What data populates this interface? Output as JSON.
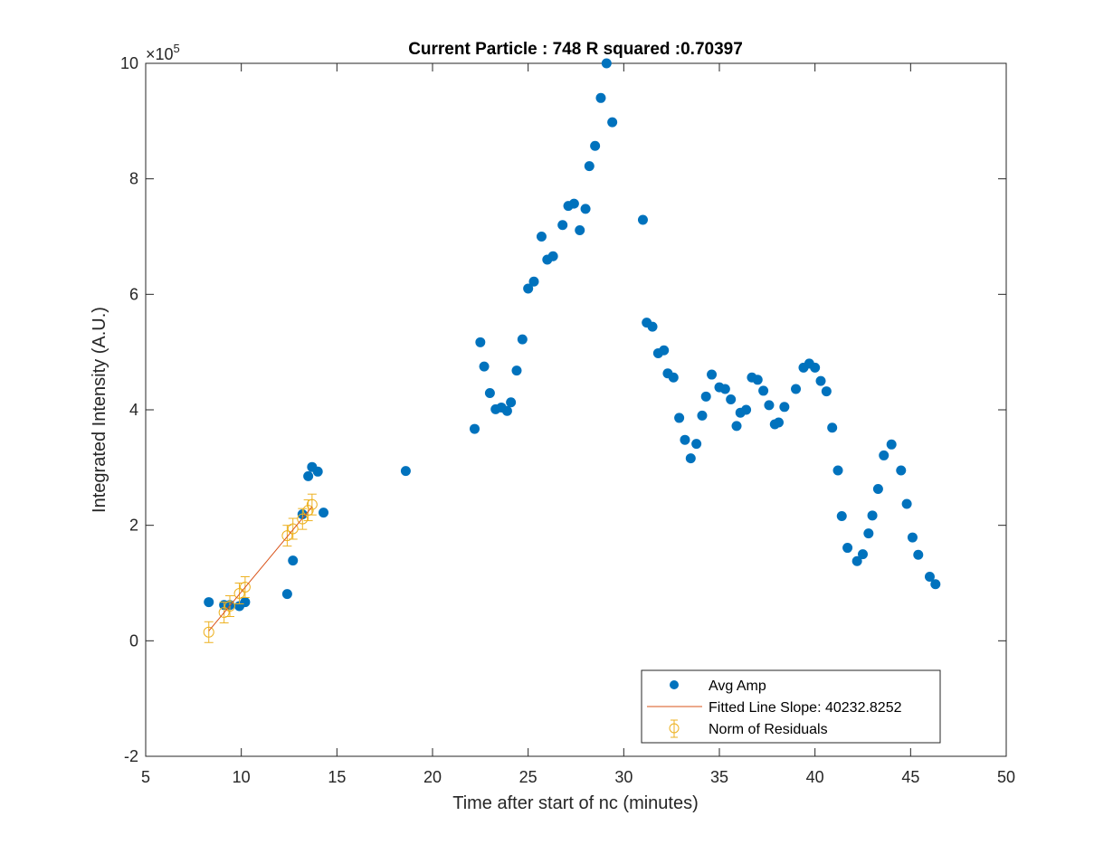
{
  "chart_data": {
    "type": "scatter",
    "title": "Current Particle : 748   R squared :0.70397",
    "xlabel": "Time after start of nc (minutes)",
    "ylabel": "Integrated Intensity (A.U.)",
    "xlim": [
      5,
      50
    ],
    "ylim": [
      -2,
      10
    ],
    "y_exponent_label": "×10",
    "y_exponent_power": "5",
    "y_scale_factor": 100000,
    "xticks": [
      5,
      10,
      15,
      20,
      25,
      30,
      35,
      40,
      45,
      50
    ],
    "yticks": [
      -2,
      0,
      2,
      4,
      6,
      8,
      10
    ],
    "xtick_labels": [
      "5",
      "10",
      "15",
      "20",
      "25",
      "30",
      "35",
      "40",
      "45",
      "50"
    ],
    "ytick_labels": [
      "-2",
      "0",
      "2",
      "4",
      "6",
      "8",
      "10"
    ],
    "grid": false,
    "legend_position": "bottom-right",
    "colors": {
      "avg_amp": "#0072BD",
      "fit_line": "#D95319",
      "residuals": "#EDB120",
      "axes": "#262626"
    },
    "series": [
      {
        "name": "Avg Amp",
        "marker": "filled-circle",
        "points": [
          [
            8.3,
            0.67
          ],
          [
            9.1,
            0.62
          ],
          [
            9.4,
            0.62
          ],
          [
            9.9,
            0.6
          ],
          [
            10.2,
            0.67
          ],
          [
            12.4,
            0.81
          ],
          [
            12.7,
            1.39
          ],
          [
            13.2,
            2.19
          ],
          [
            13.5,
            2.85
          ],
          [
            13.7,
            3.01
          ],
          [
            14.0,
            2.93
          ],
          [
            14.3,
            2.22
          ],
          [
            18.6,
            2.94
          ],
          [
            22.2,
            3.67
          ],
          [
            22.5,
            5.17
          ],
          [
            22.7,
            4.75
          ],
          [
            23.0,
            4.29
          ],
          [
            23.3,
            4.01
          ],
          [
            23.6,
            4.04
          ],
          [
            23.9,
            3.98
          ],
          [
            24.1,
            4.13
          ],
          [
            24.4,
            4.68
          ],
          [
            24.7,
            5.22
          ],
          [
            25.0,
            6.1
          ],
          [
            25.3,
            6.22
          ],
          [
            25.7,
            7.0
          ],
          [
            26.0,
            6.6
          ],
          [
            26.3,
            6.66
          ],
          [
            26.8,
            7.2
          ],
          [
            27.1,
            7.53
          ],
          [
            27.4,
            7.57
          ],
          [
            27.7,
            7.11
          ],
          [
            28.0,
            7.48
          ],
          [
            28.2,
            8.22
          ],
          [
            28.5,
            8.57
          ],
          [
            28.8,
            9.4
          ],
          [
            29.1,
            10.0
          ],
          [
            29.4,
            8.98
          ],
          [
            31.0,
            7.29
          ],
          [
            31.2,
            5.51
          ],
          [
            31.5,
            5.44
          ],
          [
            31.8,
            4.98
          ],
          [
            32.1,
            5.03
          ],
          [
            32.3,
            4.63
          ],
          [
            32.6,
            4.56
          ],
          [
            32.9,
            3.86
          ],
          [
            33.2,
            3.48
          ],
          [
            33.5,
            3.16
          ],
          [
            33.8,
            3.41
          ],
          [
            34.1,
            3.9
          ],
          [
            34.3,
            4.23
          ],
          [
            34.6,
            4.61
          ],
          [
            35.0,
            4.39
          ],
          [
            35.3,
            4.36
          ],
          [
            35.6,
            4.18
          ],
          [
            35.9,
            3.72
          ],
          [
            36.1,
            3.95
          ],
          [
            36.4,
            4.0
          ],
          [
            36.7,
            4.56
          ],
          [
            37.0,
            4.52
          ],
          [
            37.3,
            4.33
          ],
          [
            37.6,
            4.08
          ],
          [
            37.9,
            3.75
          ],
          [
            38.1,
            3.78
          ],
          [
            38.4,
            4.05
          ],
          [
            39.0,
            4.36
          ],
          [
            39.4,
            4.73
          ],
          [
            39.7,
            4.8
          ],
          [
            40.0,
            4.73
          ],
          [
            40.3,
            4.5
          ],
          [
            40.6,
            4.32
          ],
          [
            40.9,
            3.69
          ],
          [
            41.2,
            2.95
          ],
          [
            41.4,
            2.16
          ],
          [
            41.7,
            1.61
          ],
          [
            42.2,
            1.38
          ],
          [
            42.5,
            1.5
          ],
          [
            42.8,
            1.86
          ],
          [
            43.0,
            2.17
          ],
          [
            43.3,
            2.63
          ],
          [
            43.6,
            3.21
          ],
          [
            44.0,
            3.4
          ],
          [
            44.5,
            2.95
          ],
          [
            44.8,
            2.37
          ],
          [
            45.1,
            1.79
          ],
          [
            45.4,
            1.49
          ],
          [
            46.0,
            1.11
          ],
          [
            46.3,
            0.98
          ]
        ]
      },
      {
        "name": "Fitted Line Slope: 40232.8252",
        "line": "solid",
        "points": [
          [
            8.3,
            0.17
          ],
          [
            13.7,
            2.32
          ]
        ]
      },
      {
        "name": "Norm of Residuals",
        "marker": "open-circle-errorbar",
        "error": 0.18,
        "points": [
          [
            8.3,
            0.15
          ],
          [
            9.1,
            0.49
          ],
          [
            9.4,
            0.6
          ],
          [
            9.9,
            0.82
          ],
          [
            10.2,
            0.93
          ],
          [
            12.4,
            1.82
          ],
          [
            12.7,
            1.94
          ],
          [
            13.2,
            2.11
          ],
          [
            13.5,
            2.26
          ],
          [
            13.7,
            2.36
          ]
        ]
      }
    ]
  }
}
